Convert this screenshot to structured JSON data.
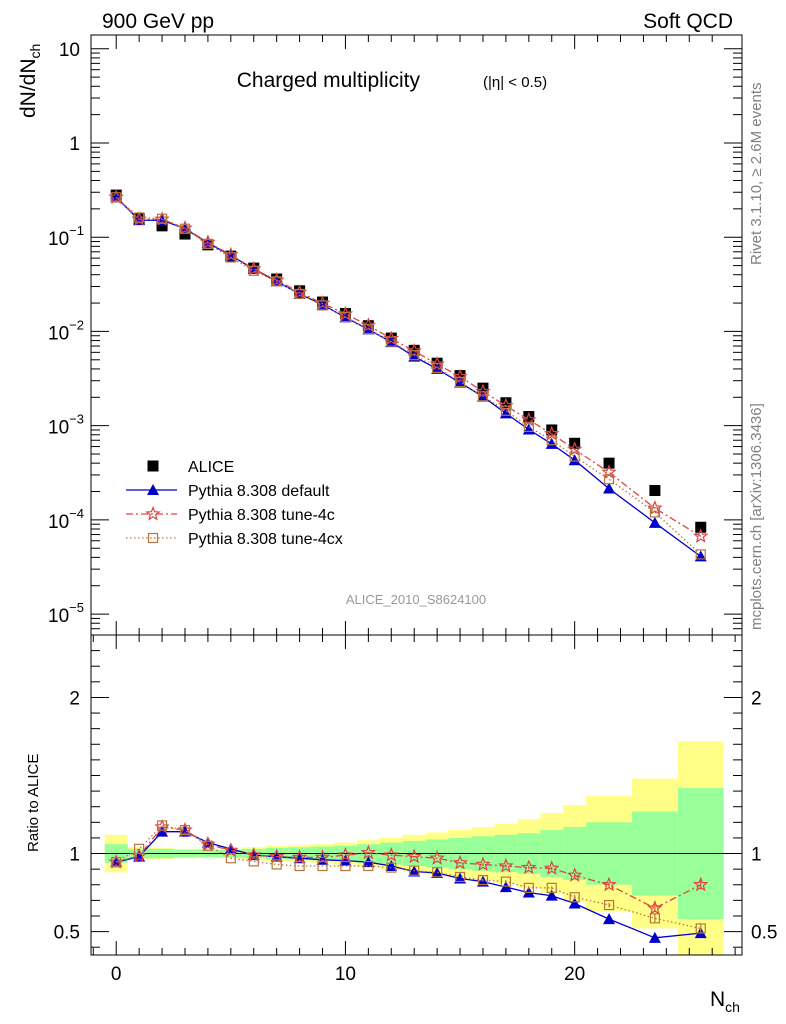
{
  "header": {
    "left": "900 GeV pp",
    "right": "Soft QCD"
  },
  "side_text": {
    "top": "Rivet 3.1.10, ≥ 2.6M events",
    "bottom": "mcplots.cern.ch [arXiv:1306.3436]"
  },
  "colors": {
    "data": "#000000",
    "default": "#0000cc",
    "tune4c": "#dd4444",
    "tune4cx": "#b8763c",
    "band_stat": "#99ff99",
    "band_tot": "#ffff88",
    "watermark": "#999999"
  },
  "chart_data": [
    {
      "type": "scatter",
      "title": "Charged multiplicity",
      "title_suffix": "(|η| < 0.5)",
      "ylabel": "dN/dN",
      "ylabel_sub": "ch",
      "yscale": "log",
      "ylim": [
        6e-06,
        14
      ],
      "xlim": [
        -1.1,
        27.3
      ],
      "y_tick_labels": [
        {
          "value": 10,
          "base": "10",
          "exp": ""
        },
        {
          "value": 1,
          "base": "1",
          "exp": ""
        },
        {
          "value": 0.1,
          "base": "10",
          "exp": "−1"
        },
        {
          "value": 0.01,
          "base": "10",
          "exp": "−2"
        },
        {
          "value": 0.001,
          "base": "10",
          "exp": "−3"
        },
        {
          "value": 0.0001,
          "base": "10",
          "exp": "−4"
        },
        {
          "value": 1e-05,
          "base": "10",
          "exp": "−5"
        }
      ],
      "watermark": "ALICE_2010_S8624100",
      "legend": [
        {
          "key": "data",
          "label": "ALICE"
        },
        {
          "key": "default",
          "label": "Pythia 8.308 default"
        },
        {
          "key": "tune4c",
          "label": "Pythia 8.308 tune-4c"
        },
        {
          "key": "tune4cx",
          "label": "Pythia 8.308 tune-4cx"
        }
      ],
      "x": [
        0,
        1,
        2,
        3,
        4,
        5,
        6,
        7,
        8,
        9,
        10,
        11,
        12,
        13,
        14,
        15,
        16,
        17,
        18,
        19,
        20,
        21.5,
        23.5,
        25.5
      ],
      "series": [
        {
          "key": "data",
          "name": "ALICE",
          "values": [
            0.28,
            0.158,
            0.132,
            0.108,
            0.083,
            0.063,
            0.047,
            0.036,
            0.027,
            0.0205,
            0.0155,
            0.0115,
            0.0085,
            0.0063,
            0.0046,
            0.0034,
            0.0025,
            0.00175,
            0.00125,
            0.0009,
            0.00065,
            0.0004,
            0.000205,
            8.35e-05
          ]
        },
        {
          "key": "default",
          "name": "Pythia 8.308 default",
          "values": [
            0.265,
            0.152,
            0.151,
            0.123,
            0.087,
            0.064,
            0.046,
            0.034,
            0.025,
            0.0192,
            0.0141,
            0.0105,
            0.0077,
            0.0054,
            0.004,
            0.00286,
            0.00203,
            0.00135,
            0.00091,
            0.00064,
            0.00043,
            0.000215,
            9.3e-05,
            4.1e-05
          ]
        },
        {
          "key": "tune4c",
          "name": "Pythia 8.308 tune-4c",
          "values": [
            0.265,
            0.155,
            0.155,
            0.125,
            0.088,
            0.065,
            0.046,
            0.035,
            0.026,
            0.0199,
            0.0153,
            0.0116,
            0.0084,
            0.0062,
            0.0045,
            0.0033,
            0.0023,
            0.00163,
            0.00115,
            0.00082,
            0.00056,
            0.00032,
            0.000133,
            6.7e-05
          ]
        },
        {
          "key": "tune4cx",
          "name": "Pythia 8.308 tune-4cx",
          "values": [
            0.265,
            0.162,
            0.157,
            0.123,
            0.085,
            0.061,
            0.044,
            0.034,
            0.025,
            0.0189,
            0.0142,
            0.0106,
            0.0078,
            0.0056,
            0.0041,
            0.0029,
            0.00205,
            0.00144,
            0.00097,
            0.0007,
            0.00047,
            0.00027,
            0.00012,
            4.3e-05
          ]
        }
      ]
    },
    {
      "type": "scatter",
      "ylabel": "Ratio to ALICE",
      "xlabel": "N",
      "xlabel_sub": "ch",
      "ylim": [
        0.35,
        2.4
      ],
      "xlim": [
        -1.1,
        27.3
      ],
      "x_ticks": [
        0,
        10,
        20
      ],
      "y_tick_labels": [
        "2",
        "1",
        "0.5"
      ],
      "y_ticks": [
        2,
        1,
        0.5
      ],
      "x": [
        0,
        1,
        2,
        3,
        4,
        5,
        6,
        7,
        8,
        9,
        10,
        11,
        12,
        13,
        14,
        15,
        16,
        17,
        18,
        19,
        20,
        21.5,
        23.5,
        25.5
      ],
      "bin_edges": [
        -0.5,
        0.5,
        1.5,
        2.5,
        3.5,
        4.5,
        5.5,
        6.5,
        7.5,
        8.5,
        9.5,
        10.5,
        11.5,
        12.5,
        13.5,
        14.5,
        15.5,
        16.5,
        17.5,
        18.5,
        19.5,
        20.5,
        22.5,
        24.5,
        26.5
      ],
      "band_stat": [
        0.06,
        0.03,
        0.03,
        0.025,
        0.025,
        0.025,
        0.03,
        0.035,
        0.04,
        0.045,
        0.05,
        0.06,
        0.07,
        0.08,
        0.09,
        0.1,
        0.11,
        0.12,
        0.13,
        0.15,
        0.17,
        0.2,
        0.27,
        0.42
      ],
      "band_total": [
        0.12,
        0.04,
        0.035,
        0.03,
        0.03,
        0.03,
        0.04,
        0.05,
        0.055,
        0.06,
        0.07,
        0.085,
        0.1,
        0.12,
        0.135,
        0.15,
        0.17,
        0.19,
        0.22,
        0.26,
        0.31,
        0.37,
        0.48,
        0.72
      ],
      "series": [
        {
          "key": "default",
          "name": "Pythia 8.308 default",
          "values": [
            0.945,
            0.98,
            1.14,
            1.14,
            1.07,
            1.03,
            0.99,
            0.98,
            0.97,
            0.96,
            0.955,
            0.945,
            0.92,
            0.885,
            0.875,
            0.84,
            0.82,
            0.785,
            0.75,
            0.73,
            0.68,
            0.58,
            0.46,
            0.49
          ],
          "errors": [
            0,
            0,
            0,
            0,
            0,
            0,
            0,
            0,
            0,
            0,
            0,
            0,
            0,
            0,
            0,
            0,
            0.01,
            0.01,
            0.01,
            0.01,
            0.015,
            0.015,
            0.025,
            0.03
          ]
        },
        {
          "key": "tune4c",
          "name": "Pythia 8.308 tune-4c",
          "values": [
            0.945,
            0.985,
            1.17,
            1.15,
            1.06,
            1.02,
            0.99,
            0.98,
            0.975,
            0.975,
            0.99,
            1.005,
            0.99,
            0.98,
            0.97,
            0.94,
            0.93,
            0.92,
            0.91,
            0.905,
            0.86,
            0.8,
            0.65,
            0.8
          ],
          "errors": [
            0,
            0,
            0,
            0,
            0,
            0,
            0,
            0,
            0,
            0,
            0,
            0,
            0,
            0,
            0,
            0,
            0.01,
            0.01,
            0.01,
            0.01,
            0.015,
            0.015,
            0.025,
            0.03
          ]
        },
        {
          "key": "tune4cx",
          "name": "Pythia 8.308 tune-4cx",
          "values": [
            0.945,
            1.03,
            1.18,
            1.15,
            1.05,
            0.97,
            0.95,
            0.93,
            0.92,
            0.92,
            0.92,
            0.92,
            0.91,
            0.89,
            0.88,
            0.85,
            0.83,
            0.82,
            0.78,
            0.78,
            0.72,
            0.67,
            0.585,
            0.52
          ],
          "errors": [
            0,
            0,
            0,
            0,
            0,
            0,
            0,
            0,
            0,
            0,
            0,
            0,
            0,
            0,
            0,
            0,
            0.01,
            0.01,
            0.01,
            0.01,
            0.015,
            0.015,
            0.025,
            0.03
          ]
        }
      ]
    }
  ]
}
